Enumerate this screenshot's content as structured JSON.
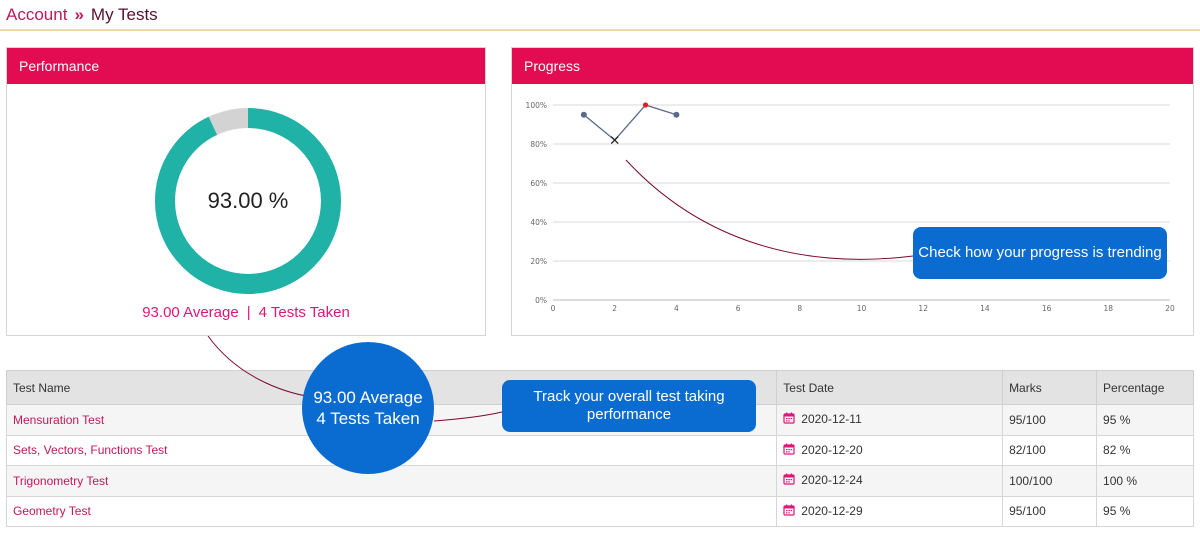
{
  "breadcrumb": {
    "parent": "Account",
    "separator": "»",
    "current": "My Tests"
  },
  "performance": {
    "title": "Performance",
    "percent_label": "93.00 %",
    "percent_value": 93.0,
    "average_text": "93.00 Average",
    "divider": "|",
    "tests_taken_text": "4 Tests Taken",
    "colors": {
      "fill": "#20b2a6",
      "remainder": "#d3d3d3"
    }
  },
  "progress": {
    "title": "Progress",
    "chart_data": {
      "type": "line",
      "x": [
        1,
        2,
        3,
        4
      ],
      "y": [
        95,
        82,
        100,
        95
      ],
      "xlim": [
        0,
        20
      ],
      "ylim": [
        0,
        100
      ],
      "x_ticks": [
        "0",
        "2",
        "4",
        "6",
        "8",
        "10",
        "12",
        "14",
        "16",
        "18",
        "20"
      ],
      "y_ticks": [
        "0%",
        "20%",
        "40%",
        "60%",
        "80%",
        "100%"
      ],
      "grid": true,
      "line_color": "#5a6a8a",
      "max_marker_color": "#e51b23"
    }
  },
  "callouts": {
    "progress": "Check how your progress is trending",
    "track": "Track your overall test taking performance",
    "circle_line1": "93.00 Average",
    "circle_line2": "4 Tests Taken"
  },
  "table": {
    "headers": [
      "Test Name",
      "Test Date",
      "Marks",
      "Percentage"
    ],
    "rows": [
      {
        "name": "Mensuration Test",
        "date": "2020-12-11",
        "marks": "95/100",
        "percentage": "95 %"
      },
      {
        "name": "Sets, Vectors, Functions Test",
        "date": "2020-12-20",
        "marks": "82/100",
        "percentage": "82 %"
      },
      {
        "name": "Trigonometry Test",
        "date": "2020-12-24",
        "marks": "100/100",
        "percentage": "100 %"
      },
      {
        "name": "Geometry Test",
        "date": "2020-12-29",
        "marks": "95/100",
        "percentage": "95 %"
      }
    ]
  },
  "icons": {
    "calendar": "calendar-icon"
  },
  "colors": {
    "accent": "#e30b52",
    "callout": "#0a6bd0",
    "link": "#c2185b"
  }
}
